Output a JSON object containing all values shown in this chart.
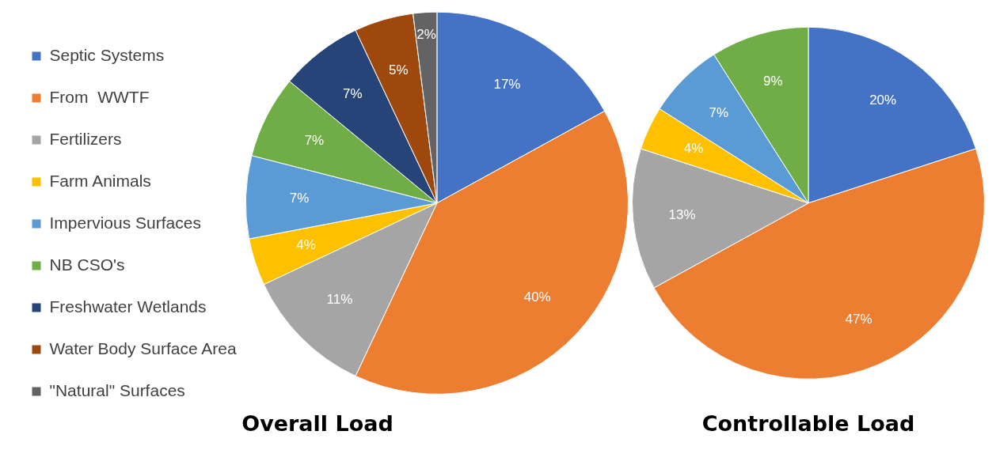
{
  "chart_data": [
    {
      "type": "pie",
      "title": "Overall Load",
      "categories": [
        "Septic Systems",
        "From  WWTF",
        "Fertilizers",
        "Farm Animals",
        "Impervious Surfaces",
        "NB CSO's",
        "Freshwater Wetlands",
        "Water Body Surface Area",
        "\"Natural\" Surfaces"
      ],
      "values": [
        17,
        40,
        11,
        4,
        7,
        7,
        7,
        5,
        2
      ],
      "value_labels": [
        "17%",
        "40%",
        "11%",
        "4%",
        "7%",
        "7%",
        "7%",
        "5%",
        "2%"
      ],
      "colors": [
        "#4472c4",
        "#ed7d31",
        "#a5a5a5",
        "#ffc000",
        "#5b9bd5",
        "#70ad47",
        "#264478",
        "#9e480e",
        "#636363"
      ],
      "legend": "left"
    },
    {
      "type": "pie",
      "title": "Controllable Load",
      "categories": [
        null,
        null,
        null,
        null,
        null,
        null
      ],
      "values": [
        20,
        47,
        13,
        4,
        7,
        9
      ],
      "value_labels": [
        "20%",
        "47%",
        "13%",
        "4%",
        "7%",
        "9%"
      ],
      "colors": [
        "#4472c4",
        "#ed7d31",
        "#a5a5a5",
        "#ffc000",
        "#5b9bd5",
        "#70ad47"
      ]
    }
  ]
}
